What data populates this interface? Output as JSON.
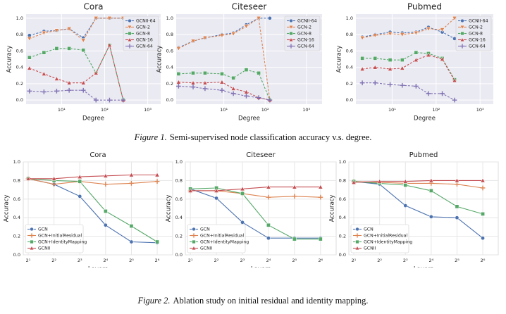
{
  "chart_data": [
    {
      "type": "line",
      "title": "Cora",
      "xlabel": "Degree",
      "ylabel": "Accuracy",
      "xscale": "log",
      "background": "#eaeaf2",
      "grid": true,
      "dashed": true,
      "legend": "upper right",
      "xlim": [
        1.5,
        2000
      ],
      "xticks": [
        {
          "value": 10,
          "label": "10¹"
        },
        {
          "value": 100,
          "label": "10²"
        },
        {
          "value": 1000,
          "label": "10³"
        }
      ],
      "ylim": [
        -0.05,
        1.05
      ],
      "yticks": [
        {
          "value": 0,
          "label": "0.0"
        },
        {
          "value": 0.2,
          "label": "0.2"
        },
        {
          "value": 0.4,
          "label": "0.4"
        },
        {
          "value": 0.6,
          "label": "0.6"
        },
        {
          "value": 0.8,
          "label": "0.8"
        },
        {
          "value": 1,
          "label": "1.0"
        }
      ],
      "x": [
        1.8,
        3.9,
        7.7,
        15,
        32,
        63,
        130,
        270
      ],
      "series": [
        {
          "name": "GCNII-64",
          "color": "#4c72b0",
          "marker": "circle",
          "values": [
            0.79,
            0.84,
            0.85,
            0.87,
            0.76,
            1.0,
            1.0,
            1.0
          ]
        },
        {
          "name": "GCN-2",
          "color": "#dd8452",
          "marker": "triangle-down",
          "values": [
            0.75,
            0.82,
            0.85,
            0.87,
            0.73,
            1.0,
            1.0,
            1.0
          ]
        },
        {
          "name": "GCN-8",
          "color": "#55a868",
          "marker": "square",
          "values": [
            0.52,
            0.58,
            0.63,
            0.63,
            0.61,
            0.33,
            0.67,
            0.0
          ]
        },
        {
          "name": "GCN-16",
          "color": "#c44e52",
          "marker": "triangle-up",
          "values": [
            0.39,
            0.32,
            0.26,
            0.21,
            0.21,
            0.33,
            0.67,
            0.0
          ]
        },
        {
          "name": "GCN-64",
          "color": "#8172b3",
          "marker": "plus",
          "values": [
            0.11,
            0.1,
            0.11,
            0.12,
            0.12,
            0.0,
            0.0,
            0.0
          ]
        }
      ]
    },
    {
      "type": "line",
      "title": "Citeseer",
      "xlabel": "Degree",
      "ylabel": "Accuracy",
      "xscale": "log",
      "background": "#eaeaf2",
      "grid": true,
      "dashed": true,
      "legend": "upper right",
      "xlim": [
        0.7,
        2400
      ],
      "xticks": [
        {
          "value": 10,
          "label": "10¹"
        },
        {
          "value": 100,
          "label": "10²"
        },
        {
          "value": 1000,
          "label": "10³"
        }
      ],
      "ylim": [
        -0.05,
        1.05
      ],
      "yticks": [
        {
          "value": 0,
          "label": "0.0"
        },
        {
          "value": 0.2,
          "label": "0.2"
        },
        {
          "value": 0.4,
          "label": "0.4"
        },
        {
          "value": 0.6,
          "label": "0.6"
        },
        {
          "value": 0.8,
          "label": "0.8"
        },
        {
          "value": 1,
          "label": "1.0"
        }
      ],
      "x": [
        0.8,
        1.8,
        3.5,
        9,
        17,
        35,
        70,
        130
      ],
      "series": [
        {
          "name": "GCNII-64",
          "color": "#4c72b0",
          "marker": "circle",
          "values": [
            0.64,
            0.72,
            0.76,
            0.8,
            0.82,
            0.92,
            1.0,
            1.0
          ]
        },
        {
          "name": "GCN-2",
          "color": "#dd8452",
          "marker": "triangle-down",
          "values": [
            0.63,
            0.72,
            0.76,
            0.79,
            0.81,
            0.9,
            1.0,
            0.0
          ]
        },
        {
          "name": "GCN-8",
          "color": "#55a868",
          "marker": "square",
          "values": [
            0.32,
            0.33,
            0.33,
            0.32,
            0.27,
            0.37,
            0.33,
            0.0
          ]
        },
        {
          "name": "GCN-16",
          "color": "#c44e52",
          "marker": "triangle-up",
          "values": [
            0.22,
            0.21,
            0.21,
            0.22,
            0.14,
            0.1,
            0.03,
            0.0
          ]
        },
        {
          "name": "GCN-64",
          "color": "#8172b3",
          "marker": "plus",
          "values": [
            0.17,
            0.16,
            0.14,
            0.12,
            0.08,
            0.05,
            0.03,
            0.0
          ]
        }
      ]
    },
    {
      "type": "line",
      "title": "Pubmed",
      "xlabel": "Degree",
      "ylabel": "Accuracy",
      "xscale": "log",
      "background": "#eaeaf2",
      "grid": true,
      "dashed": true,
      "legend": "upper right",
      "xlim": [
        1.5,
        2000
      ],
      "xticks": [
        {
          "value": 10,
          "label": "10¹"
        },
        {
          "value": 100,
          "label": "10²"
        },
        {
          "value": 1000,
          "label": "10³"
        }
      ],
      "ylim": [
        -0.05,
        1.05
      ],
      "yticks": [
        {
          "value": 0,
          "label": "0.0"
        },
        {
          "value": 0.2,
          "label": "0.2"
        },
        {
          "value": 0.4,
          "label": "0.4"
        },
        {
          "value": 0.6,
          "label": "0.6"
        },
        {
          "value": 0.8,
          "label": "0.8"
        },
        {
          "value": 1,
          "label": "1.0"
        }
      ],
      "x": [
        2.1,
        4.1,
        9,
        17,
        35,
        67,
        138,
        263
      ],
      "series": [
        {
          "name": "GCNII-64",
          "color": "#4c72b0",
          "marker": "circle",
          "values": [
            0.77,
            0.8,
            0.83,
            0.82,
            0.83,
            0.89,
            0.83,
            0.75
          ]
        },
        {
          "name": "GCN-2",
          "color": "#dd8452",
          "marker": "triangle-down",
          "values": [
            0.76,
            0.79,
            0.81,
            0.8,
            0.82,
            0.87,
            0.86,
            1.0
          ]
        },
        {
          "name": "GCN-8",
          "color": "#55a868",
          "marker": "square",
          "values": [
            0.51,
            0.51,
            0.49,
            0.49,
            0.58,
            0.57,
            0.51,
            0.25
          ]
        },
        {
          "name": "GCN-16",
          "color": "#c44e52",
          "marker": "triangle-up",
          "values": [
            0.38,
            0.4,
            0.38,
            0.39,
            0.49,
            0.55,
            0.5,
            0.24
          ]
        },
        {
          "name": "GCN-64",
          "color": "#8172b3",
          "marker": "plus",
          "values": [
            0.21,
            0.21,
            0.19,
            0.18,
            0.17,
            0.08,
            0.08,
            0.0
          ]
        }
      ]
    },
    {
      "type": "line",
      "title": "Cora",
      "xlabel": "Layers",
      "ylabel": "Accuracy",
      "xscale": "log",
      "background": "#ffffff",
      "grid": true,
      "dashed": false,
      "legend": "lower left",
      "xlim": [
        1.75,
        97
      ],
      "xticks": [
        {
          "value": 2,
          "label": "2¹"
        },
        {
          "value": 4,
          "label": "2²"
        },
        {
          "value": 8,
          "label": "2³"
        },
        {
          "value": 16,
          "label": "2⁴"
        },
        {
          "value": 32,
          "label": "2⁵"
        },
        {
          "value": 64,
          "label": "2⁶"
        }
      ],
      "ylim": [
        0,
        1
      ],
      "yticks": [
        {
          "value": 0,
          "label": "0.0"
        },
        {
          "value": 0.2,
          "label": "0.2"
        },
        {
          "value": 0.4,
          "label": "0.4"
        },
        {
          "value": 0.6,
          "label": "0.6"
        },
        {
          "value": 0.8,
          "label": "0.8"
        },
        {
          "value": 1,
          "label": "1.0"
        }
      ],
      "x": [
        2,
        4,
        8,
        16,
        32,
        64
      ],
      "series": [
        {
          "name": "GCN",
          "color": "#4c72b0",
          "marker": "circle",
          "values": [
            0.82,
            0.76,
            0.63,
            0.32,
            0.14,
            0.13
          ]
        },
        {
          "name": "GCN+InitialResidual",
          "color": "#dd8452",
          "marker": "plus",
          "values": [
            0.82,
            0.76,
            0.79,
            0.76,
            0.77,
            0.79
          ]
        },
        {
          "name": "GCN+IdentityMapping",
          "color": "#55a868",
          "marker": "square",
          "values": [
            0.82,
            0.8,
            0.79,
            0.47,
            0.31,
            0.14
          ]
        },
        {
          "name": "GCNII",
          "color": "#c44e52",
          "marker": "triangle-up",
          "values": [
            0.82,
            0.82,
            0.84,
            0.85,
            0.86,
            0.86
          ]
        }
      ]
    },
    {
      "type": "line",
      "title": "Citeseer",
      "xlabel": "Layers",
      "ylabel": "Accuracy",
      "xscale": "log",
      "background": "#ffffff",
      "grid": true,
      "dashed": false,
      "legend": "lower left",
      "xlim": [
        1.75,
        97
      ],
      "xticks": [
        {
          "value": 2,
          "label": "2¹"
        },
        {
          "value": 4,
          "label": "2²"
        },
        {
          "value": 8,
          "label": "2³"
        },
        {
          "value": 16,
          "label": "2⁴"
        },
        {
          "value": 32,
          "label": "2⁵"
        },
        {
          "value": 64,
          "label": "2⁶"
        }
      ],
      "ylim": [
        0,
        1
      ],
      "yticks": [
        {
          "value": 0,
          "label": "0.0"
        },
        {
          "value": 0.2,
          "label": "0.2"
        },
        {
          "value": 0.4,
          "label": "0.4"
        },
        {
          "value": 0.6,
          "label": "0.6"
        },
        {
          "value": 0.8,
          "label": "0.8"
        },
        {
          "value": 1,
          "label": "1.0"
        }
      ],
      "x": [
        2,
        4,
        8,
        16,
        32,
        64
      ],
      "series": [
        {
          "name": "GCN",
          "color": "#4c72b0",
          "marker": "circle",
          "values": [
            0.71,
            0.61,
            0.35,
            0.18,
            0.18,
            0.18
          ]
        },
        {
          "name": "GCN+InitialResidual",
          "color": "#dd8452",
          "marker": "plus",
          "values": [
            0.69,
            0.69,
            0.66,
            0.62,
            0.63,
            0.62
          ]
        },
        {
          "name": "GCN+IdentityMapping",
          "color": "#55a868",
          "marker": "square",
          "values": [
            0.71,
            0.72,
            0.66,
            0.32,
            0.17,
            0.17
          ]
        },
        {
          "name": "GCNII",
          "color": "#c44e52",
          "marker": "triangle-up",
          "values": [
            0.69,
            0.69,
            0.71,
            0.73,
            0.73,
            0.73
          ]
        }
      ]
    },
    {
      "type": "line",
      "title": "Pubmed",
      "xlabel": "Layers",
      "ylabel": "Accuracy",
      "xscale": "log",
      "background": "#ffffff",
      "grid": true,
      "dashed": false,
      "legend": "lower left",
      "xlim": [
        1.75,
        97
      ],
      "xticks": [
        {
          "value": 2,
          "label": "2¹"
        },
        {
          "value": 4,
          "label": "2²"
        },
        {
          "value": 8,
          "label": "2³"
        },
        {
          "value": 16,
          "label": "2⁴"
        },
        {
          "value": 32,
          "label": "2⁵"
        },
        {
          "value": 64,
          "label": "2⁶"
        }
      ],
      "ylim": [
        0,
        1
      ],
      "yticks": [
        {
          "value": 0,
          "label": "0.0"
        },
        {
          "value": 0.2,
          "label": "0.2"
        },
        {
          "value": 0.4,
          "label": "0.4"
        },
        {
          "value": 0.6,
          "label": "0.6"
        },
        {
          "value": 0.8,
          "label": "0.8"
        },
        {
          "value": 1,
          "label": "1.0"
        }
      ],
      "x": [
        2,
        4,
        8,
        16,
        32,
        64
      ],
      "series": [
        {
          "name": "GCN",
          "color": "#4c72b0",
          "marker": "circle",
          "values": [
            0.79,
            0.76,
            0.53,
            0.41,
            0.4,
            0.18
          ]
        },
        {
          "name": "GCN+InitialResidual",
          "color": "#dd8452",
          "marker": "plus",
          "values": [
            0.79,
            0.78,
            0.77,
            0.77,
            0.76,
            0.72
          ]
        },
        {
          "name": "GCN+IdentityMapping",
          "color": "#55a868",
          "marker": "square",
          "values": [
            0.79,
            0.77,
            0.75,
            0.69,
            0.52,
            0.44
          ]
        },
        {
          "name": "GCNII",
          "color": "#c44e52",
          "marker": "triangle-up",
          "values": [
            0.78,
            0.79,
            0.79,
            0.8,
            0.8,
            0.8
          ]
        }
      ]
    }
  ],
  "captions": [
    {
      "label": "Figure 1.",
      "text": "Semi-supervised node classification accuracy v.s. degree."
    },
    {
      "label": "Figure 2.",
      "text": "Ablation study on initial residual and identity mapping."
    }
  ]
}
